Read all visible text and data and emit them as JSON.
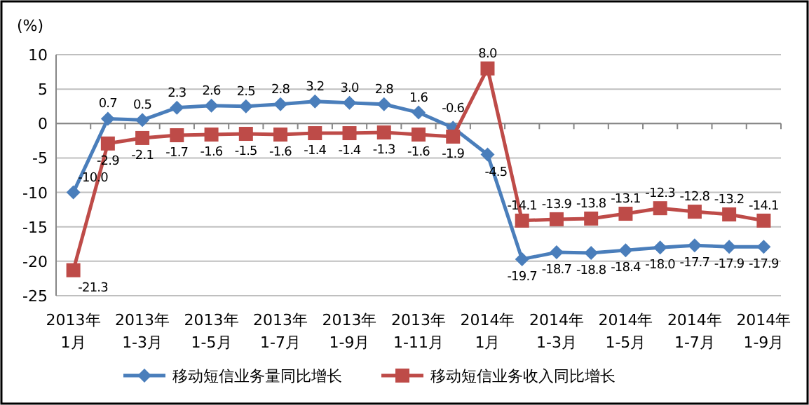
{
  "chart_data": {
    "type": "line",
    "ylabel": "(%)",
    "categories": [
      "2013年\n1月",
      null,
      "2013年\n1-3月",
      null,
      "2013年\n1-5月",
      null,
      "2013年\n1-7月",
      null,
      "2013年\n1-9月",
      null,
      "2013年\n1-11月",
      null,
      "2014年\n1月",
      null,
      "2014年\n1-3月",
      null,
      "2014年\n1-5月",
      null,
      "2014年\n1-7月",
      null,
      "2014年\n1-9月"
    ],
    "series": [
      {
        "name": "移动短信业务量同比增长",
        "color": "#4a7ebb",
        "marker": "diamond",
        "values": [
          -10.0,
          0.7,
          0.5,
          2.3,
          2.6,
          2.5,
          2.8,
          3.2,
          3.0,
          2.8,
          1.6,
          -0.6,
          -4.5,
          -19.7,
          -18.7,
          -18.8,
          -18.4,
          -18.0,
          -17.7,
          -17.9,
          -17.9
        ],
        "value_labels": [
          "-10.0",
          "0.7",
          "0.5",
          "2.3",
          "2.6",
          "2.5",
          "2.8",
          "3.2",
          "3.0",
          "2.8",
          "1.6",
          "-0.6",
          "-4.5",
          "-19.7",
          "-18.7",
          "-18.8",
          "-18.4",
          "-18.0",
          "-17.7",
          "-17.9",
          "-17.9"
        ]
      },
      {
        "name": "移动短信业务收入同比增长",
        "color": "#be4b48",
        "marker": "square",
        "values": [
          -21.3,
          -2.9,
          -2.1,
          -1.7,
          -1.6,
          -1.5,
          -1.6,
          -1.4,
          -1.4,
          -1.3,
          -1.6,
          -1.9,
          8.0,
          -14.1,
          -13.9,
          -13.8,
          -13.1,
          -12.3,
          -12.8,
          -13.2,
          -14.1
        ],
        "value_labels": [
          "-21.3",
          "-2.9",
          "-2.1",
          "-1.7",
          "-1.6",
          "-1.5",
          "-1.6",
          "-1.4",
          "-1.4",
          "-1.3",
          "-1.6",
          "-1.9",
          "8.0",
          "-14.1",
          "-13.9",
          "-13.8",
          "-13.1",
          "-12.3",
          "-12.8",
          "-13.2",
          "-14.1"
        ]
      }
    ],
    "ylim": [
      -25,
      10
    ],
    "yticks": [
      -25,
      -20,
      -15,
      -10,
      -5,
      0,
      5,
      10
    ],
    "grid": "y",
    "legend": "bottom"
  }
}
